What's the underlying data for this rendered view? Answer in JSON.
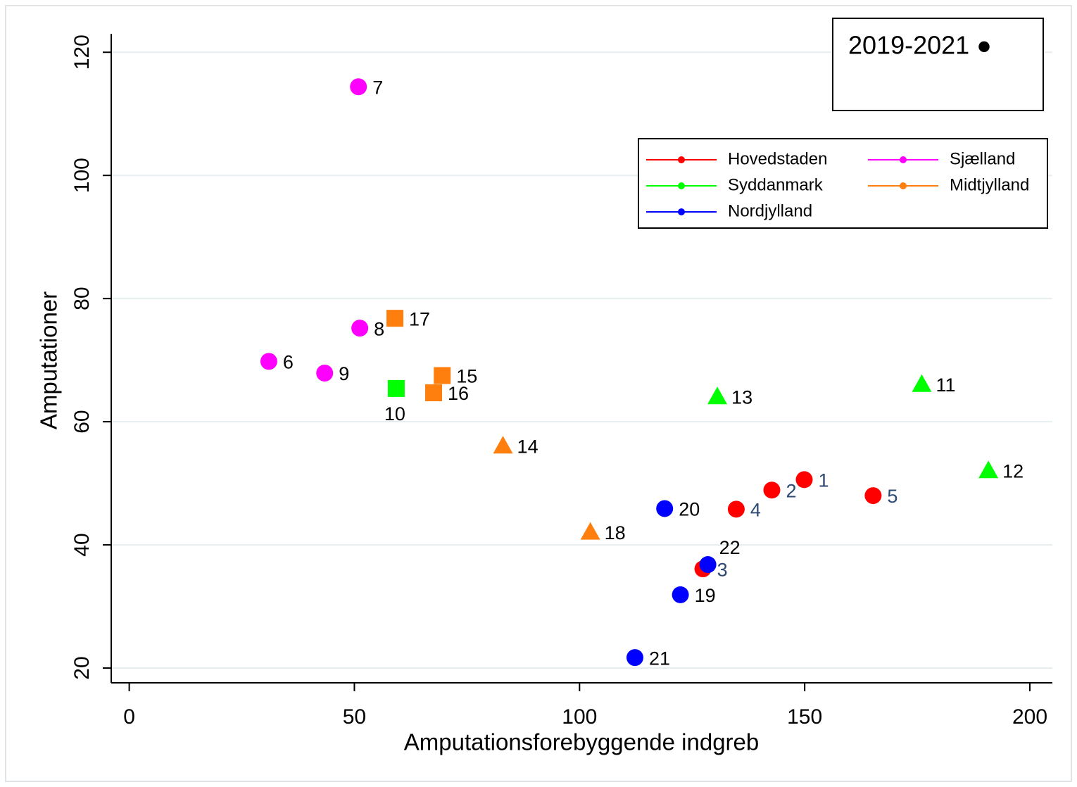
{
  "chart_data": {
    "type": "scatter",
    "annotation": "2019-2021 ●",
    "x_label": "Amputationsforebyggende indgreb",
    "y_label": "Amputationer",
    "xlim": [
      -4,
      205
    ],
    "ylim": [
      17.6,
      123
    ],
    "xticks": [
      0,
      50,
      100,
      150,
      200
    ],
    "yticks": [
      20,
      40,
      60,
      80,
      100,
      120
    ],
    "grid": true,
    "legend": "upper right",
    "series": [
      {
        "name": "Hovedstaden",
        "color": "#ff0000",
        "label_color": "#2e4a73",
        "x": [
          149.9,
          142.7,
          127.4,
          134.8,
          165.2
        ],
        "values": [
          50.6,
          48.9,
          36.1,
          45.8,
          48.0
        ],
        "labels": [
          "1",
          "2",
          "3",
          "4",
          "5"
        ],
        "markers": [
          "circle",
          "circle",
          "circle",
          "circle",
          "circle"
        ]
      },
      {
        "name": "Sjælland",
        "color": "#ff00ff",
        "label_color": "#000000",
        "x": [
          31.0,
          50.9,
          51.2,
          43.4
        ],
        "values": [
          69.8,
          114.4,
          75.2,
          67.9
        ],
        "labels": [
          "6",
          "7",
          "8",
          "9"
        ],
        "markers": [
          "circle",
          "circle",
          "circle",
          "circle"
        ]
      },
      {
        "name": "Syddanmark",
        "color": "#00ff00",
        "label_color": "#000000",
        "x": [
          59.3,
          176.0,
          190.8,
          130.6
        ],
        "values": [
          65.4,
          66.1,
          52.1,
          64.1
        ],
        "labels": [
          "10",
          "11",
          "12",
          "13"
        ],
        "markers": [
          "square",
          "triangle",
          "triangle",
          "triangle"
        ]
      },
      {
        "name": "Midtjylland",
        "color": "#ff7f0e",
        "label_color": "#000000",
        "x": [
          83.0,
          69.5,
          67.6,
          59.0,
          102.4
        ],
        "values": [
          56.1,
          67.5,
          64.7,
          76.8,
          42.1
        ],
        "labels": [
          "14",
          "15",
          "16",
          "17",
          "18"
        ],
        "markers": [
          "triangle",
          "square",
          "square",
          "square",
          "triangle"
        ]
      },
      {
        "name": "Nordjylland",
        "color": "#0000ff",
        "label_color": "#000000",
        "x": [
          122.4,
          118.9,
          112.3,
          128.5
        ],
        "values": [
          31.9,
          45.9,
          21.7,
          36.8
        ],
        "labels": [
          "19",
          "20",
          "21",
          "22"
        ],
        "markers": [
          "circle",
          "circle",
          "circle",
          "circle"
        ]
      }
    ]
  }
}
